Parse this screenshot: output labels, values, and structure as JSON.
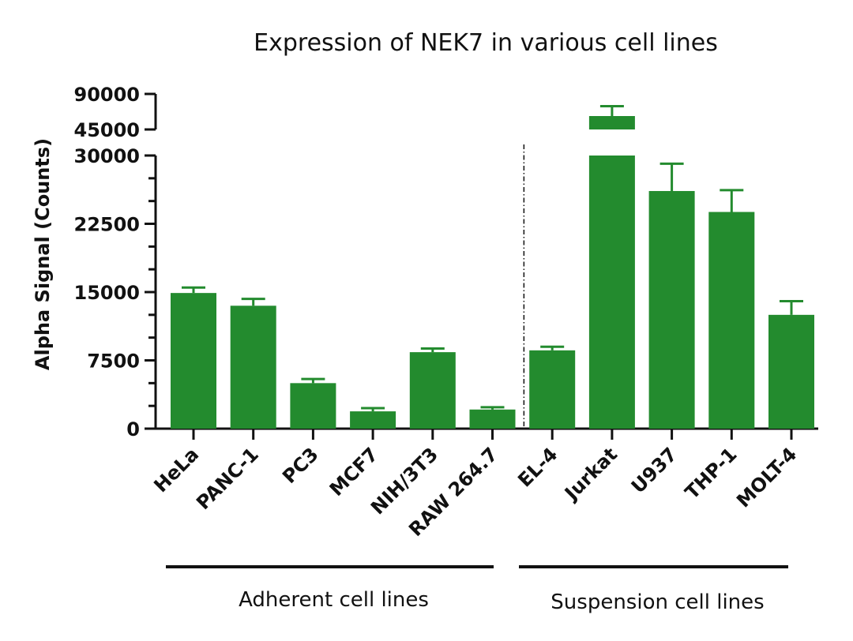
{
  "chart_data": {
    "type": "bar",
    "title": "Expression of  NEK7 in various cell lines",
    "ylabel": "Alpha Signal (Counts)",
    "xlabel": "",
    "categories": [
      "HeLa",
      "PANC-1",
      "PC3",
      "MCF7",
      "NIH/3T3",
      "RAW 264.7",
      "EL-4",
      "Jurkat",
      "U937",
      "THP-1",
      "MOLT-4"
    ],
    "values": [
      14900,
      13500,
      5000,
      1900,
      8400,
      2100,
      8600,
      62000,
      26100,
      23800,
      12500
    ],
    "errors": [
      600,
      750,
      450,
      350,
      400,
      250,
      400,
      12500,
      3000,
      2400,
      1500
    ],
    "color": "#238b2e",
    "y_axis": {
      "broken": true,
      "lower_segment": {
        "ylim": [
          0,
          30000
        ],
        "ticks": [
          "0",
          "7500",
          "15000",
          "22500",
          "30000"
        ],
        "tick_values": [
          0,
          7500,
          15000,
          22500,
          30000
        ]
      },
      "upper_segment": {
        "ylim": [
          45000,
          90000
        ],
        "ticks": [
          "45000",
          "90000"
        ],
        "tick_values": [
          45000,
          90000
        ]
      }
    },
    "divider_after_category": "RAW 264.7",
    "divider_style": "dash-dot",
    "groups": [
      {
        "label": "Adherent cell lines",
        "categories": [
          "HeLa",
          "PANC-1",
          "PC3",
          "MCF7",
          "NIH/3T3",
          "RAW 264.7"
        ]
      },
      {
        "label": "Suspension cell lines",
        "categories": [
          "EL-4",
          "Jurkat",
          "U937",
          "THP-1",
          "MOLT-4"
        ]
      }
    ],
    "grid": false,
    "legend": "none"
  }
}
